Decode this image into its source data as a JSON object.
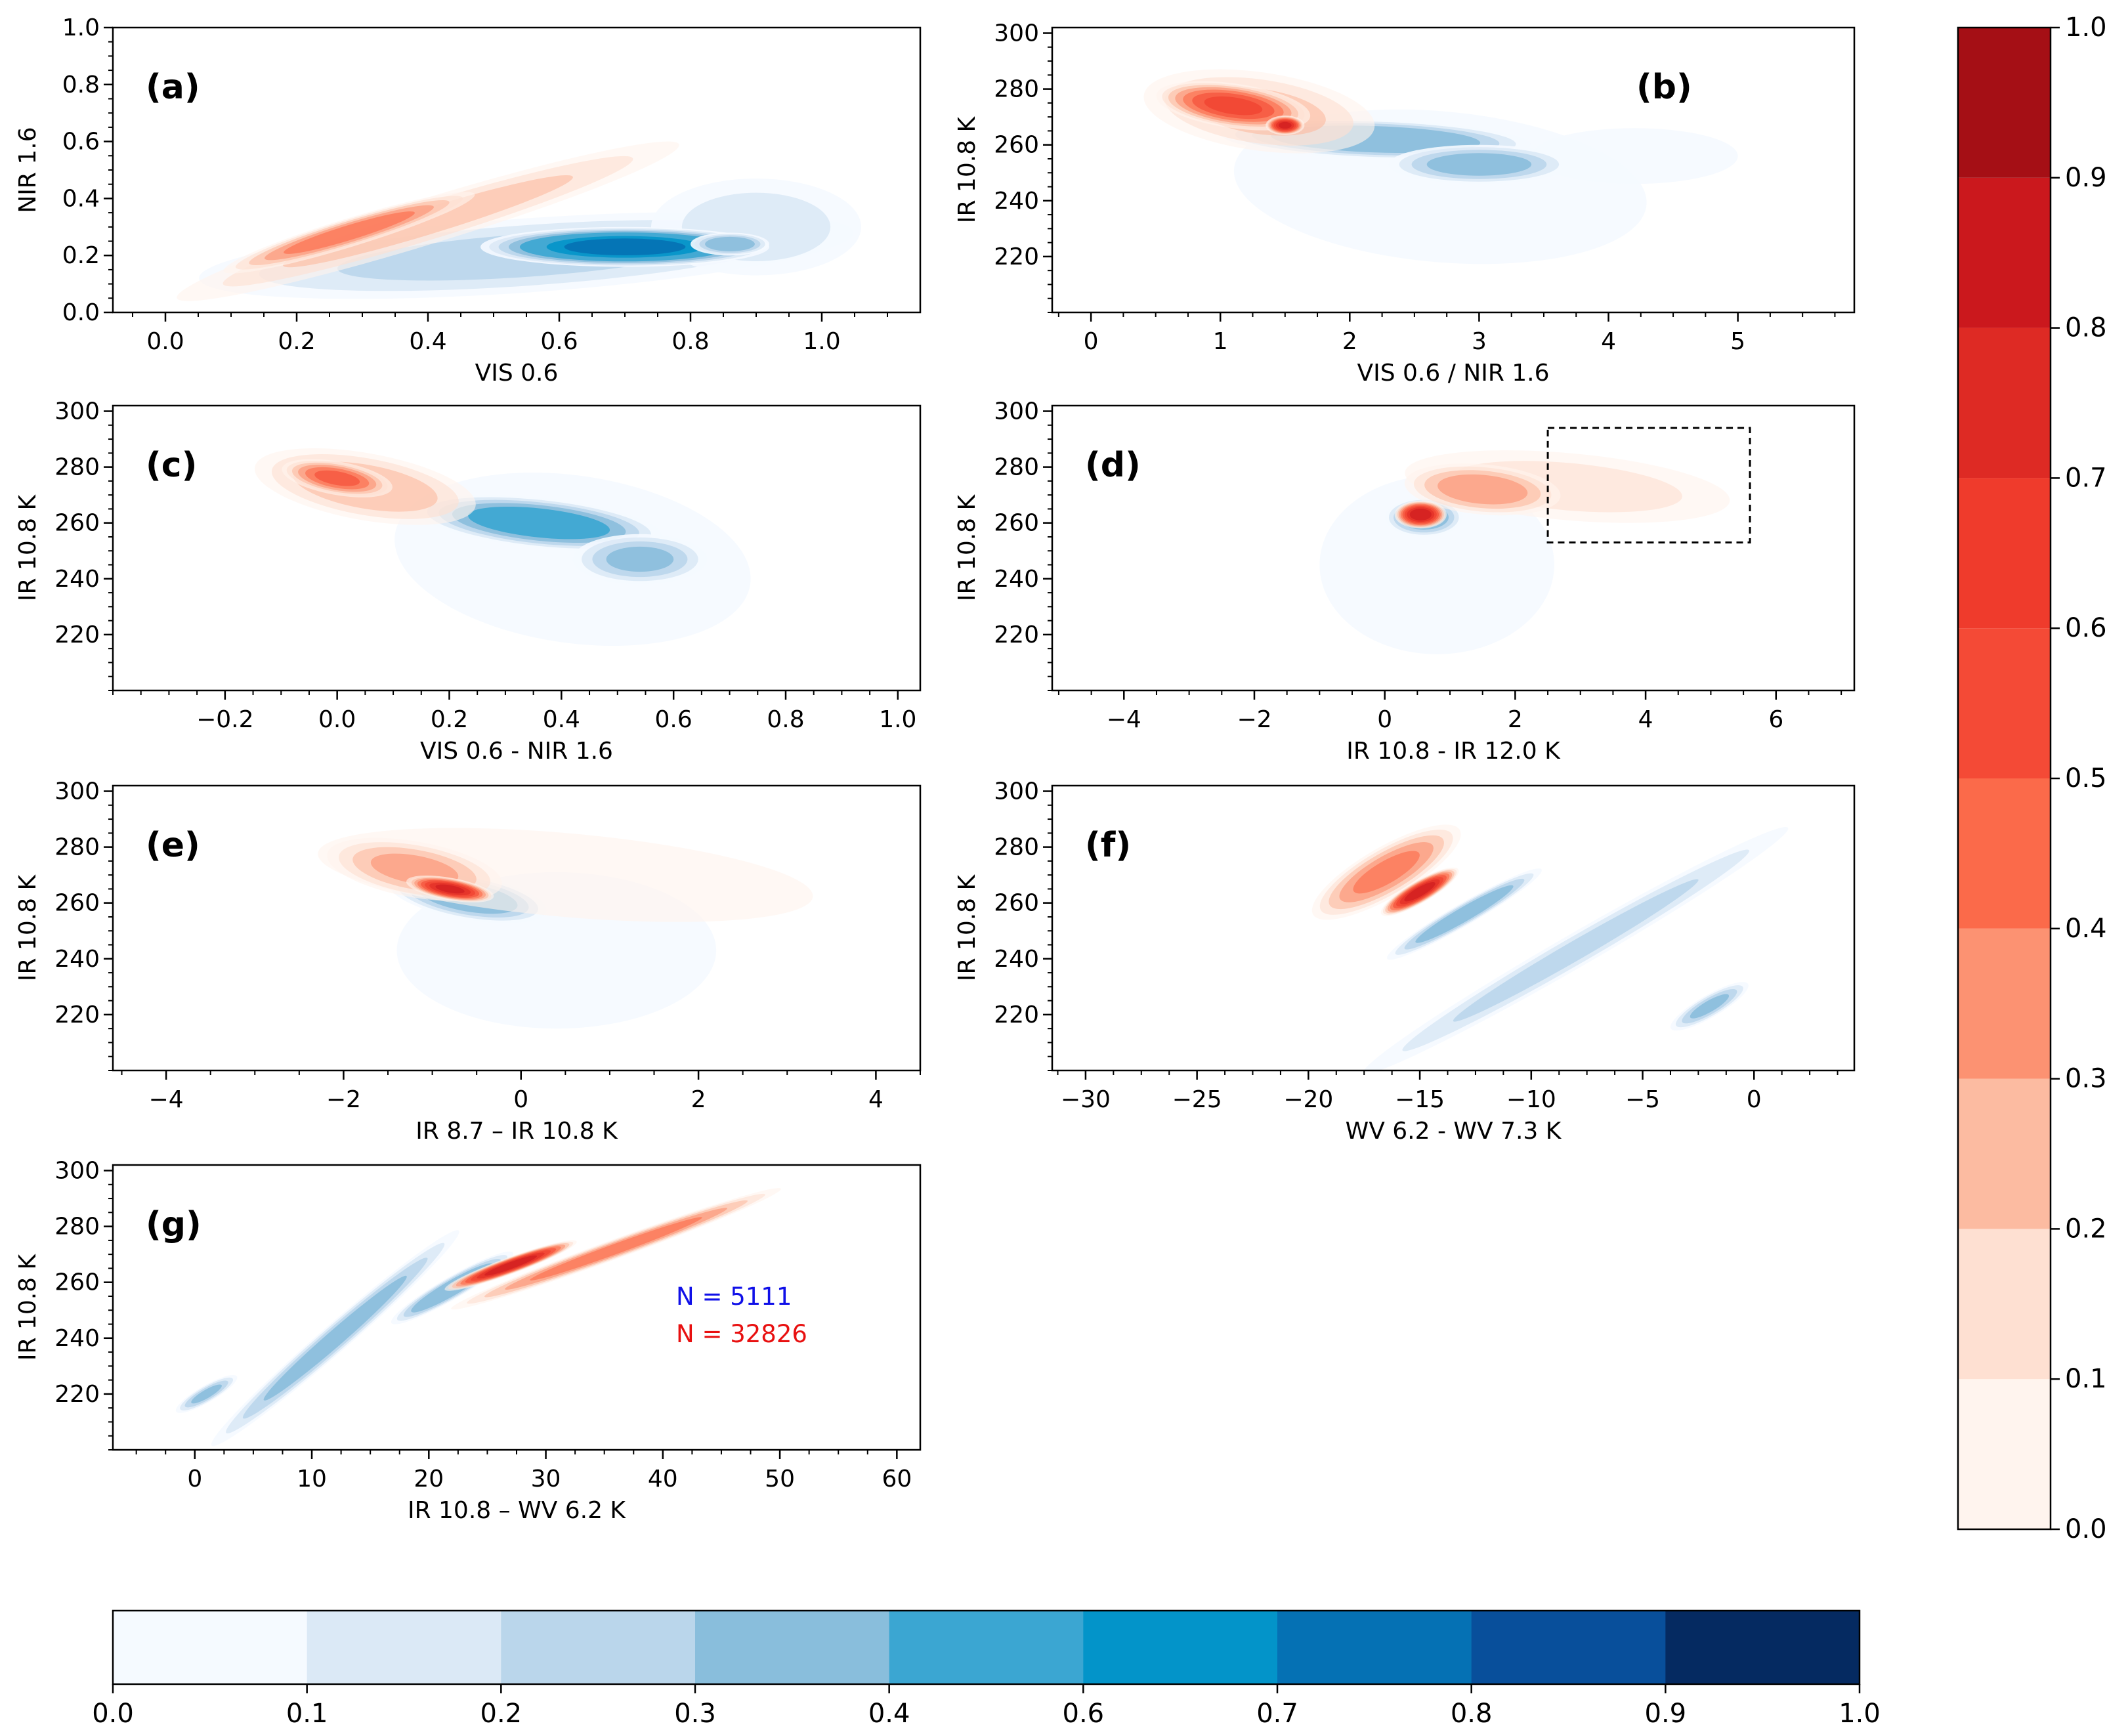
{
  "chart_data": [
    {
      "panel": "a",
      "type": "contour",
      "panel_label": "(a)",
      "xlabel": "VIS 0.6",
      "ylabel": "NIR 1.6",
      "xlim": [
        -0.08,
        1.15
      ],
      "ylim": [
        0.0,
        1.0
      ],
      "xticks": [
        0.0,
        0.2,
        0.4,
        0.6,
        0.8,
        1.0
      ],
      "xtick_labels": [
        "0.0",
        "0.2",
        "0.4",
        "0.6",
        "0.8",
        "1.0"
      ],
      "yticks": [
        0.0,
        0.2,
        0.4,
        0.6,
        0.8,
        1.0
      ],
      "ytick_labels": [
        "0.0",
        "0.2",
        "0.4",
        "0.6",
        "0.8",
        "1.0"
      ],
      "series": [
        {
          "colormap": "blue",
          "blobs": [
            {
              "cx": 0.55,
              "cy": 0.2,
              "rx": 0.5,
              "ry": 0.13,
              "rot": 4,
              "peak": 0.3
            },
            {
              "cx": 0.9,
              "cy": 0.3,
              "rx": 0.16,
              "ry": 0.17,
              "rot": 0,
              "peak": 0.2
            },
            {
              "cx": 0.7,
              "cy": 0.23,
              "rx": 0.22,
              "ry": 0.07,
              "rot": 0,
              "peak": 0.85
            },
            {
              "cx": 0.86,
              "cy": 0.24,
              "rx": 0.06,
              "ry": 0.04,
              "rot": 0,
              "peak": 0.5
            }
          ]
        },
        {
          "colormap": "red",
          "blobs": [
            {
              "cx": 0.4,
              "cy": 0.32,
              "rx": 0.4,
              "ry": 0.08,
              "rot": 17,
              "peak": 0.3
            },
            {
              "cx": 0.28,
              "cy": 0.28,
              "rx": 0.2,
              "ry": 0.05,
              "rot": 17,
              "peak": 0.55
            }
          ]
        }
      ]
    },
    {
      "panel": "b",
      "type": "contour",
      "panel_label": "(b)",
      "xlabel": "VIS 0.6 / NIR 1.6",
      "ylabel": "IR 10.8 K",
      "xlim": [
        -0.3,
        5.9
      ],
      "ylim": [
        200,
        302
      ],
      "xticks": [
        0,
        1,
        2,
        3,
        4,
        5
      ],
      "xtick_labels": [
        "0",
        "1",
        "2",
        "3",
        "4",
        "5"
      ],
      "yticks": [
        220,
        240,
        260,
        280,
        300
      ],
      "ytick_labels": [
        "220",
        "240",
        "260",
        "280",
        "300"
      ],
      "series": [
        {
          "colormap": "blue",
          "blobs": [
            {
              "cx": 2.7,
              "cy": 245,
              "rx": 1.6,
              "ry": 27,
              "rot": -5,
              "peak": 0.15
            },
            {
              "cx": 4.2,
              "cy": 256,
              "rx": 0.8,
              "ry": 10,
              "rot": 0,
              "peak": 0.13
            },
            {
              "cx": 2.2,
              "cy": 262,
              "rx": 1.2,
              "ry": 7,
              "rot": -2,
              "peak": 0.55
            },
            {
              "cx": 3.0,
              "cy": 253,
              "rx": 0.7,
              "ry": 7,
              "rot": 0,
              "peak": 0.45
            }
          ]
        },
        {
          "colormap": "red",
          "blobs": [
            {
              "cx": 1.3,
              "cy": 272,
              "rx": 0.9,
              "ry": 14,
              "rot": -8,
              "peak": 0.3
            },
            {
              "cx": 1.1,
              "cy": 274,
              "rx": 0.6,
              "ry": 8,
              "rot": -8,
              "peak": 0.7
            },
            {
              "cx": 1.5,
              "cy": 267,
              "rx": 0.15,
              "ry": 3.5,
              "rot": 0,
              "peak": 0.9
            }
          ]
        }
      ]
    },
    {
      "panel": "c",
      "type": "contour",
      "panel_label": "(c)",
      "xlabel": "VIS 0.6 - NIR 1.6",
      "ylabel": "IR 10.8 K",
      "xlim": [
        -0.4,
        1.04
      ],
      "ylim": [
        200,
        302
      ],
      "xticks": [
        -0.2,
        0.0,
        0.2,
        0.4,
        0.6,
        0.8,
        1.0
      ],
      "xtick_labels": [
        "−0.2",
        "0.0",
        "0.2",
        "0.4",
        "0.6",
        "0.8",
        "1.0"
      ],
      "yticks": [
        220,
        240,
        260,
        280,
        300
      ],
      "ytick_labels": [
        "220",
        "240",
        "260",
        "280",
        "300"
      ],
      "series": [
        {
          "colormap": "blue",
          "blobs": [
            {
              "cx": 0.42,
              "cy": 247,
              "rx": 0.32,
              "ry": 30,
              "rot": -8,
              "peak": 0.15
            },
            {
              "cx": 0.36,
              "cy": 260,
              "rx": 0.22,
              "ry": 9,
              "rot": -6,
              "peak": 0.6
            },
            {
              "cx": 0.54,
              "cy": 247,
              "rx": 0.12,
              "ry": 9,
              "rot": 0,
              "peak": 0.4
            }
          ]
        },
        {
          "colormap": "red",
          "blobs": [
            {
              "cx": 0.05,
              "cy": 273,
              "rx": 0.2,
              "ry": 12,
              "rot": -10,
              "peak": 0.35
            },
            {
              "cx": 0.0,
              "cy": 276,
              "rx": 0.1,
              "ry": 6,
              "rot": -10,
              "peak": 0.6
            }
          ]
        }
      ]
    },
    {
      "panel": "d",
      "type": "contour",
      "panel_label": "(d)",
      "xlabel": "IR 10.8 - IR 12.0 K",
      "ylabel": "IR 10.8 K",
      "xlim": [
        -5.1,
        7.2
      ],
      "ylim": [
        200,
        302
      ],
      "xticks": [
        -4,
        -2,
        0,
        2,
        4,
        6
      ],
      "xtick_labels": [
        "−4",
        "−2",
        "0",
        "2",
        "4",
        "6"
      ],
      "yticks": [
        220,
        240,
        260,
        280,
        300
      ],
      "ytick_labels": [
        "220",
        "240",
        "260",
        "280",
        "300"
      ],
      "annotation_box": {
        "x": [
          2.5,
          5.6
        ],
        "y": [
          253,
          294
        ]
      },
      "series": [
        {
          "colormap": "blue",
          "blobs": [
            {
              "cx": 0.8,
              "cy": 245,
              "rx": 1.8,
              "ry": 32,
              "rot": 0,
              "peak": 0.18
            },
            {
              "cx": 0.6,
              "cy": 262,
              "rx": 0.6,
              "ry": 7,
              "rot": 0,
              "peak": 0.5
            }
          ]
        },
        {
          "colormap": "red",
          "blobs": [
            {
              "cx": 2.8,
              "cy": 273,
              "rx": 2.5,
              "ry": 12,
              "rot": -5,
              "peak": 0.2
            },
            {
              "cx": 1.5,
              "cy": 272,
              "rx": 1.2,
              "ry": 9,
              "rot": -5,
              "peak": 0.45
            },
            {
              "cx": 0.55,
              "cy": 263,
              "rx": 0.4,
              "ry": 5,
              "rot": 0,
              "peak": 0.97
            }
          ]
        }
      ]
    },
    {
      "panel": "e",
      "type": "contour",
      "panel_label": "(e)",
      "xlabel": "IR 8.7 – IR 10.8 K",
      "ylabel": "IR 10.8 K",
      "xlim": [
        -4.6,
        4.5
      ],
      "ylim": [
        200,
        302
      ],
      "xticks": [
        -4,
        -2,
        0,
        2,
        4
      ],
      "xtick_labels": [
        "−4",
        "−2",
        "0",
        "2",
        "4"
      ],
      "yticks": [
        220,
        240,
        260,
        280,
        300
      ],
      "ytick_labels": [
        "220",
        "240",
        "260",
        "280",
        "300"
      ],
      "series": [
        {
          "colormap": "blue",
          "blobs": [
            {
              "cx": 0.4,
              "cy": 243,
              "rx": 1.8,
              "ry": 28,
              "rot": 0,
              "peak": 0.15
            },
            {
              "cx": -0.6,
              "cy": 262,
              "rx": 0.9,
              "ry": 8,
              "rot": -10,
              "peak": 0.5
            }
          ]
        },
        {
          "colormap": "red",
          "blobs": [
            {
              "cx": 0.5,
              "cy": 270,
              "rx": 2.8,
              "ry": 15,
              "rot": -5,
              "peak": 0.12
            },
            {
              "cx": -1.2,
              "cy": 272,
              "rx": 1.0,
              "ry": 10,
              "rot": -10,
              "peak": 0.4
            },
            {
              "cx": -0.8,
              "cy": 265,
              "rx": 0.5,
              "ry": 4,
              "rot": -10,
              "peak": 0.9
            }
          ]
        }
      ]
    },
    {
      "panel": "f",
      "type": "contour",
      "panel_label": "(f)",
      "xlabel": "WV 6.2 - WV 7.3 K",
      "ylabel": "IR 10.8 K",
      "xlim": [
        -31.5,
        4.5
      ],
      "ylim": [
        200,
        302
      ],
      "xticks": [
        -30,
        -25,
        -20,
        -15,
        -10,
        -5,
        0
      ],
      "xtick_labels": [
        "−30",
        "−25",
        "−20",
        "−15",
        "−10",
        "−5",
        "0"
      ],
      "yticks": [
        220,
        240,
        260,
        280,
        300
      ],
      "ytick_labels": [
        "220",
        "240",
        "260",
        "280",
        "300"
      ],
      "series": [
        {
          "colormap": "blue",
          "blobs": [
            {
              "cx": -8,
              "cy": 243,
              "rx": 11,
              "ry": 6,
              "rot": 30,
              "peak": 0.3
            },
            {
              "cx": -13,
              "cy": 256,
              "rx": 4,
              "ry": 4,
              "rot": 30,
              "peak": 0.5
            },
            {
              "cx": -2,
              "cy": 223,
              "rx": 2,
              "ry": 4,
              "rot": 30,
              "peak": 0.4
            }
          ]
        },
        {
          "colormap": "red",
          "blobs": [
            {
              "cx": -16.5,
              "cy": 271,
              "rx": 3.8,
              "ry": 9,
              "rot": 30,
              "peak": 0.5
            },
            {
              "cx": -15,
              "cy": 264,
              "rx": 2.0,
              "ry": 4,
              "rot": 30,
              "peak": 0.95
            }
          ]
        }
      ]
    },
    {
      "panel": "g",
      "type": "contour",
      "panel_label": "(g)",
      "xlabel": "IR 10.8 – WV 6.2 K",
      "ylabel": "IR 10.8 K",
      "xlim": [
        -7,
        62
      ],
      "ylim": [
        200,
        302
      ],
      "xticks": [
        0,
        10,
        20,
        30,
        40,
        50,
        60
      ],
      "xtick_labels": [
        "0",
        "10",
        "20",
        "30",
        "40",
        "50",
        "60"
      ],
      "yticks": [
        220,
        240,
        260,
        280,
        300
      ],
      "ytick_labels": [
        "220",
        "240",
        "260",
        "280",
        "300"
      ],
      "counts": [
        {
          "text": "N = 5111",
          "color": "#1010e8"
        },
        {
          "text": "N = 32826",
          "color": "#e81010"
        }
      ],
      "series": [
        {
          "colormap": "blue",
          "blobs": [
            {
              "cx": 12,
              "cy": 240,
              "rx": 14,
              "ry": 5,
              "rot": 41,
              "peak": 0.45
            },
            {
              "cx": 22,
              "cy": 258,
              "rx": 6,
              "ry": 4,
              "rot": 30,
              "peak": 0.55
            },
            {
              "cx": 1,
              "cy": 220,
              "rx": 3,
              "ry": 3,
              "rot": 30,
              "peak": 0.4
            }
          ]
        },
        {
          "colormap": "red",
          "blobs": [
            {
              "cx": 36,
              "cy": 272,
              "rx": 15,
              "ry": 3.5,
              "rot": 20,
              "peak": 0.55
            },
            {
              "cx": 27,
              "cy": 266,
              "rx": 6,
              "ry": 3,
              "rot": 20,
              "peak": 0.95
            }
          ]
        }
      ]
    }
  ],
  "colorbars": {
    "red": {
      "orientation": "vertical",
      "ticks": [
        0.0,
        0.1,
        0.2,
        0.3,
        0.4,
        0.5,
        0.6,
        0.7,
        0.8,
        0.9,
        1.0
      ],
      "tick_labels": [
        "0.0",
        "0.1",
        "0.2",
        "0.3",
        "0.4",
        "0.5",
        "0.6",
        "0.7",
        "0.8",
        "0.9",
        "1.0"
      ],
      "levels": [
        0.0,
        0.1,
        0.2,
        0.3,
        0.4,
        0.5,
        0.6,
        0.7,
        0.8,
        0.9,
        1.0
      ],
      "colors": [
        "#fff4ee",
        "#fee0d2",
        "#fcbba1",
        "#fc9272",
        "#fb6a4a",
        "#f44a36",
        "#ef3b2c",
        "#de2a24",
        "#cb181d",
        "#a50f15",
        "#750008"
      ]
    },
    "blue": {
      "orientation": "horizontal",
      "ticks": [
        0.0,
        0.1,
        0.2,
        0.3,
        0.4,
        0.6,
        0.7,
        0.8,
        0.9,
        1.0
      ],
      "tick_labels": [
        "0.0",
        "0.1",
        "0.2",
        "0.3",
        "0.4",
        "0.6",
        "0.7",
        "0.8",
        "0.9",
        "1.0"
      ],
      "levels": [
        0.0,
        0.1,
        0.2,
        0.3,
        0.4,
        0.6,
        0.7,
        0.8,
        0.9,
        1.0
      ],
      "colors": [
        "#f5faff",
        "#dbe9f6",
        "#bad6eb",
        "#89bedc",
        "#3ba6d2",
        "#0394c9",
        "#0571b4",
        "#084f9b",
        "#052a61"
      ]
    }
  }
}
